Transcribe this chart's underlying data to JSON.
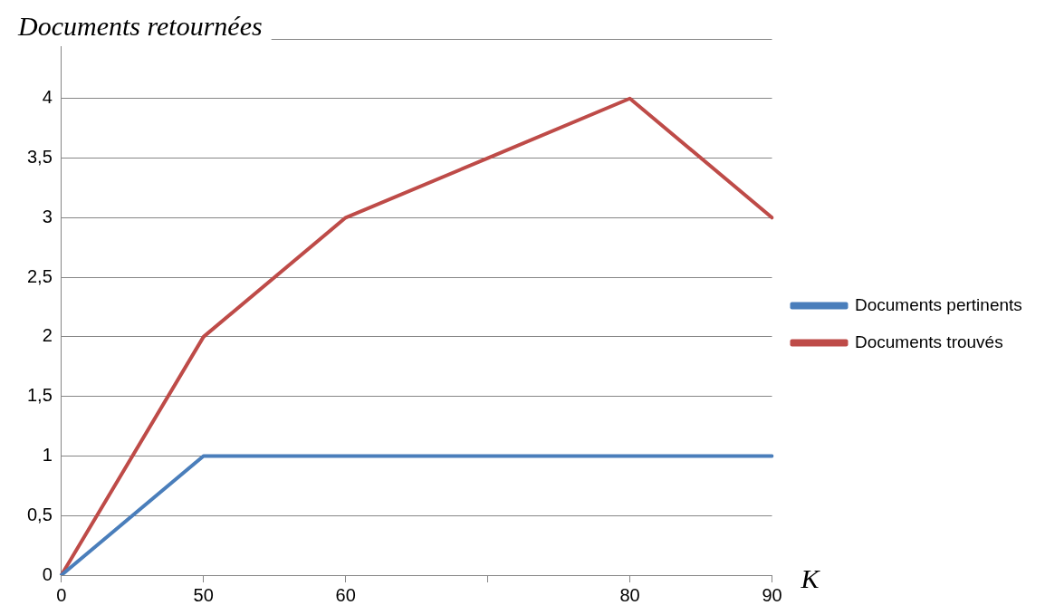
{
  "chart_data": {
    "type": "line",
    "ylabel": "Documents retournées",
    "xlabel": "K",
    "categories": [
      "0",
      "50",
      "60",
      null,
      "80",
      "90"
    ],
    "series": [
      {
        "name": "Documents pertinents",
        "color": "#4a7ebb",
        "values": [
          0,
          1,
          1,
          1,
          1,
          1
        ]
      },
      {
        "name": "Documents trouvés",
        "color": "#be4b48",
        "values": [
          0,
          2,
          3,
          3.5,
          4,
          3
        ]
      }
    ],
    "ylim": [
      0,
      4.5
    ],
    "yticks": [
      0,
      {
        "value": 0.5,
        "label": "0,5"
      },
      1,
      {
        "value": 1.5,
        "label": "1,5"
      },
      2,
      {
        "value": 2.5,
        "label": "2,5"
      },
      3,
      {
        "value": 3.5,
        "label": "3,5"
      },
      4,
      {
        "value": 4.5,
        "label": null
      }
    ],
    "grid": "y",
    "legend": "right",
    "marker": "none",
    "line_style": "solid"
  }
}
